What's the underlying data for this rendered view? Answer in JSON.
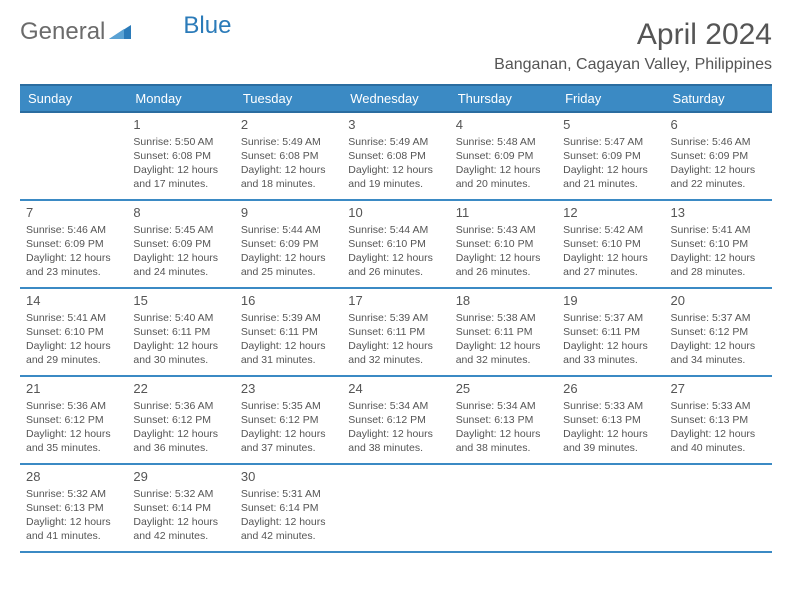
{
  "brand": {
    "part1": "General",
    "part2": "Blue"
  },
  "title": "April 2024",
  "location": "Banganan, Cagayan Valley, Philippines",
  "colors": {
    "header_bg": "#3b8ac4",
    "header_border": "#2b6da0",
    "text": "#555555",
    "brand_gray": "#6b6b6b",
    "brand_blue": "#2b7bb9"
  },
  "weekdays": [
    "Sunday",
    "Monday",
    "Tuesday",
    "Wednesday",
    "Thursday",
    "Friday",
    "Saturday"
  ],
  "weeks": [
    [
      null,
      {
        "d": "1",
        "rise": "5:50 AM",
        "set": "6:08 PM",
        "day": "12 hours and 17 minutes."
      },
      {
        "d": "2",
        "rise": "5:49 AM",
        "set": "6:08 PM",
        "day": "12 hours and 18 minutes."
      },
      {
        "d": "3",
        "rise": "5:49 AM",
        "set": "6:08 PM",
        "day": "12 hours and 19 minutes."
      },
      {
        "d": "4",
        "rise": "5:48 AM",
        "set": "6:09 PM",
        "day": "12 hours and 20 minutes."
      },
      {
        "d": "5",
        "rise": "5:47 AM",
        "set": "6:09 PM",
        "day": "12 hours and 21 minutes."
      },
      {
        "d": "6",
        "rise": "5:46 AM",
        "set": "6:09 PM",
        "day": "12 hours and 22 minutes."
      }
    ],
    [
      {
        "d": "7",
        "rise": "5:46 AM",
        "set": "6:09 PM",
        "day": "12 hours and 23 minutes."
      },
      {
        "d": "8",
        "rise": "5:45 AM",
        "set": "6:09 PM",
        "day": "12 hours and 24 minutes."
      },
      {
        "d": "9",
        "rise": "5:44 AM",
        "set": "6:09 PM",
        "day": "12 hours and 25 minutes."
      },
      {
        "d": "10",
        "rise": "5:44 AM",
        "set": "6:10 PM",
        "day": "12 hours and 26 minutes."
      },
      {
        "d": "11",
        "rise": "5:43 AM",
        "set": "6:10 PM",
        "day": "12 hours and 26 minutes."
      },
      {
        "d": "12",
        "rise": "5:42 AM",
        "set": "6:10 PM",
        "day": "12 hours and 27 minutes."
      },
      {
        "d": "13",
        "rise": "5:41 AM",
        "set": "6:10 PM",
        "day": "12 hours and 28 minutes."
      }
    ],
    [
      {
        "d": "14",
        "rise": "5:41 AM",
        "set": "6:10 PM",
        "day": "12 hours and 29 minutes."
      },
      {
        "d": "15",
        "rise": "5:40 AM",
        "set": "6:11 PM",
        "day": "12 hours and 30 minutes."
      },
      {
        "d": "16",
        "rise": "5:39 AM",
        "set": "6:11 PM",
        "day": "12 hours and 31 minutes."
      },
      {
        "d": "17",
        "rise": "5:39 AM",
        "set": "6:11 PM",
        "day": "12 hours and 32 minutes."
      },
      {
        "d": "18",
        "rise": "5:38 AM",
        "set": "6:11 PM",
        "day": "12 hours and 32 minutes."
      },
      {
        "d": "19",
        "rise": "5:37 AM",
        "set": "6:11 PM",
        "day": "12 hours and 33 minutes."
      },
      {
        "d": "20",
        "rise": "5:37 AM",
        "set": "6:12 PM",
        "day": "12 hours and 34 minutes."
      }
    ],
    [
      {
        "d": "21",
        "rise": "5:36 AM",
        "set": "6:12 PM",
        "day": "12 hours and 35 minutes."
      },
      {
        "d": "22",
        "rise": "5:36 AM",
        "set": "6:12 PM",
        "day": "12 hours and 36 minutes."
      },
      {
        "d": "23",
        "rise": "5:35 AM",
        "set": "6:12 PM",
        "day": "12 hours and 37 minutes."
      },
      {
        "d": "24",
        "rise": "5:34 AM",
        "set": "6:12 PM",
        "day": "12 hours and 38 minutes."
      },
      {
        "d": "25",
        "rise": "5:34 AM",
        "set": "6:13 PM",
        "day": "12 hours and 38 minutes."
      },
      {
        "d": "26",
        "rise": "5:33 AM",
        "set": "6:13 PM",
        "day": "12 hours and 39 minutes."
      },
      {
        "d": "27",
        "rise": "5:33 AM",
        "set": "6:13 PM",
        "day": "12 hours and 40 minutes."
      }
    ],
    [
      {
        "d": "28",
        "rise": "5:32 AM",
        "set": "6:13 PM",
        "day": "12 hours and 41 minutes."
      },
      {
        "d": "29",
        "rise": "5:32 AM",
        "set": "6:14 PM",
        "day": "12 hours and 42 minutes."
      },
      {
        "d": "30",
        "rise": "5:31 AM",
        "set": "6:14 PM",
        "day": "12 hours and 42 minutes."
      },
      null,
      null,
      null,
      null
    ]
  ],
  "labels": {
    "sunrise": "Sunrise:",
    "sunset": "Sunset:",
    "daylight": "Daylight:"
  }
}
